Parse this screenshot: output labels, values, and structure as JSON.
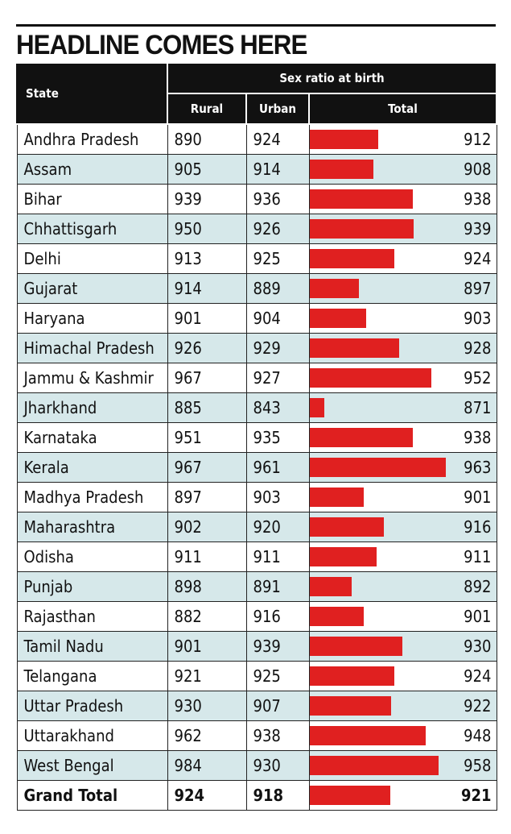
{
  "headline": "HEADLINE COMES HERE",
  "header": {
    "state": "State",
    "group": "Sex ratio at birth",
    "rural": "Rural",
    "urban": "Urban",
    "total": "Total"
  },
  "colors": {
    "bar": "#e02020",
    "stripe": "#d6e8ea",
    "header_bg": "#111111"
  },
  "chart_data": {
    "type": "table",
    "title": "HEADLINE COMES HERE",
    "columns": [
      "State",
      "Rural",
      "Urban",
      "Total"
    ],
    "bar_column": "Total",
    "bar_range": [
      860,
      970
    ],
    "rows": [
      {
        "state": "Andhra Pradesh",
        "rural": 890,
        "urban": 924,
        "total": 912
      },
      {
        "state": "Assam",
        "rural": 905,
        "urban": 914,
        "total": 908
      },
      {
        "state": "Bihar",
        "rural": 939,
        "urban": 936,
        "total": 938
      },
      {
        "state": "Chhattisgarh",
        "rural": 950,
        "urban": 926,
        "total": 939
      },
      {
        "state": "Delhi",
        "rural": 913,
        "urban": 925,
        "total": 924
      },
      {
        "state": "Gujarat",
        "rural": 914,
        "urban": 889,
        "total": 897
      },
      {
        "state": "Haryana",
        "rural": 901,
        "urban": 904,
        "total": 903
      },
      {
        "state": "Himachal Pradesh",
        "rural": 926,
        "urban": 929,
        "total": 928
      },
      {
        "state": "Jammu & Kashmir",
        "rural": 967,
        "urban": 927,
        "total": 952
      },
      {
        "state": "Jharkhand",
        "rural": 885,
        "urban": 843,
        "total": 871
      },
      {
        "state": "Karnataka",
        "rural": 951,
        "urban": 935,
        "total": 938
      },
      {
        "state": "Kerala",
        "rural": 967,
        "urban": 961,
        "total": 963
      },
      {
        "state": "Madhya Pradesh",
        "rural": 897,
        "urban": 903,
        "total": 901
      },
      {
        "state": "Maharashtra",
        "rural": 902,
        "urban": 920,
        "total": 916
      },
      {
        "state": "Odisha",
        "rural": 911,
        "urban": 911,
        "total": 911
      },
      {
        "state": "Punjab",
        "rural": 898,
        "urban": 891,
        "total": 892
      },
      {
        "state": "Rajasthan",
        "rural": 882,
        "urban": 916,
        "total": 901
      },
      {
        "state": "Tamil Nadu",
        "rural": 901,
        "urban": 939,
        "total": 930
      },
      {
        "state": "Telangana",
        "rural": 921,
        "urban": 925,
        "total": 924
      },
      {
        "state": "Uttar Pradesh",
        "rural": 930,
        "urban": 907,
        "total": 922
      },
      {
        "state": "Uttarakhand",
        "rural": 962,
        "urban": 938,
        "total": 948
      },
      {
        "state": "West Bengal",
        "rural": 984,
        "urban": 930,
        "total": 958
      }
    ],
    "grand_total": {
      "state": "Grand Total",
      "rural": 924,
      "urban": 918,
      "total": 921
    }
  }
}
